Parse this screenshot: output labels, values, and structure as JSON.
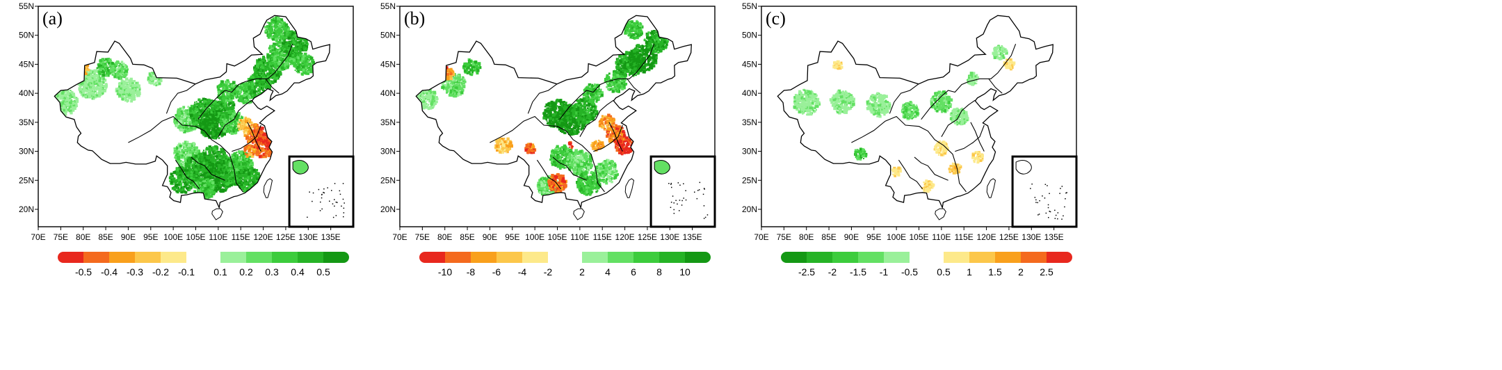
{
  "figure": {
    "panels": [
      {
        "label": "(a)",
        "x_ticks": [
          "70E",
          "75E",
          "80E",
          "85E",
          "90E",
          "95E",
          "100E",
          "105E",
          "110E",
          "115E",
          "120E",
          "125E",
          "130E",
          "135E"
        ],
        "y_ticks": [
          "20N",
          "25N",
          "30N",
          "35N",
          "40N",
          "45N",
          "50N",
          "55N"
        ],
        "colorbar_left": {
          "colors": [
            "#e8281e",
            "#f46a1e",
            "#f9a01c",
            "#fcc74a",
            "#fde98a"
          ],
          "labels": [
            "-0.5",
            "-0.4",
            "-0.3",
            "-0.2",
            "-0.1"
          ]
        },
        "colorbar_right": {
          "colors": [
            "#9af09a",
            "#63e063",
            "#3ccc3c",
            "#26b326",
            "#149814"
          ],
          "labels": [
            "0.1",
            "0.2",
            "0.3",
            "0.4",
            "0.5"
          ]
        }
      },
      {
        "label": "(b)",
        "x_ticks": [
          "70E",
          "75E",
          "80E",
          "85E",
          "90E",
          "95E",
          "100E",
          "105E",
          "110E",
          "115E",
          "120E",
          "125E",
          "130E",
          "135E"
        ],
        "y_ticks": [
          "20N",
          "25N",
          "30N",
          "35N",
          "40N",
          "45N",
          "50N",
          "55N"
        ],
        "colorbar_left": {
          "colors": [
            "#e8281e",
            "#f46a1e",
            "#f9a01c",
            "#fcc74a",
            "#fde98a"
          ],
          "labels": [
            "-10",
            "-8",
            "-6",
            "-4",
            "-2"
          ]
        },
        "colorbar_right": {
          "colors": [
            "#9af09a",
            "#63e063",
            "#3ccc3c",
            "#26b326",
            "#149814"
          ],
          "labels": [
            "2",
            "4",
            "6",
            "8",
            "10"
          ]
        }
      },
      {
        "label": "(c)",
        "x_ticks": [
          "70E",
          "75E",
          "80E",
          "85E",
          "90E",
          "95E",
          "100E",
          "105E",
          "110E",
          "115E",
          "120E",
          "125E",
          "130E",
          "135E"
        ],
        "y_ticks": [
          "20N",
          "25N",
          "30N",
          "35N",
          "40N",
          "45N",
          "50N",
          "55N"
        ],
        "colorbar_left": {
          "colors": [
            "#149814",
            "#26b326",
            "#3ccc3c",
            "#63e063",
            "#9af09a"
          ],
          "labels": [
            "-2.5",
            "-2",
            "-1.5",
            "-1",
            "-0.5"
          ]
        },
        "colorbar_right": {
          "colors": [
            "#fde98a",
            "#fcc74a",
            "#f9a01c",
            "#f46a1e",
            "#e8281e"
          ],
          "labels": [
            "0.5",
            "1",
            "1.5",
            "2",
            "2.5"
          ]
        }
      }
    ]
  }
}
